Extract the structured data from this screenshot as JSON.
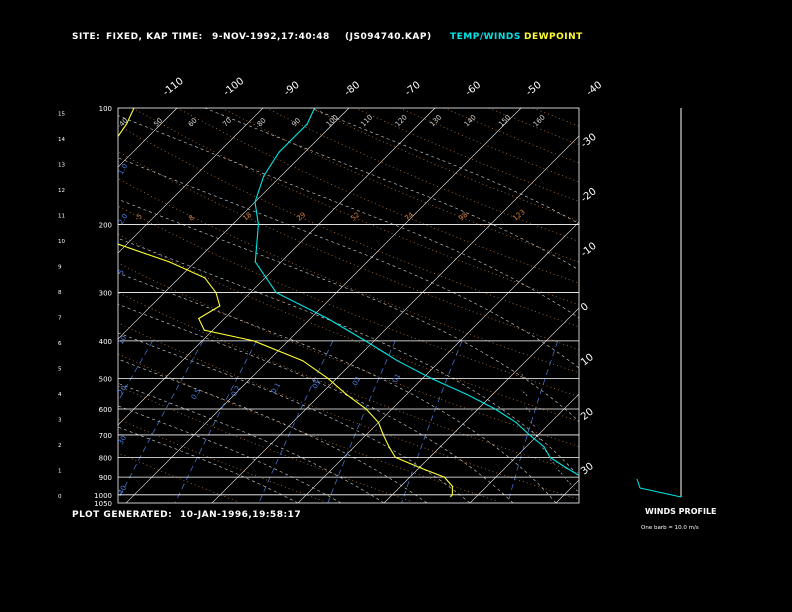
{
  "header": {
    "site_label": "SITE:",
    "site_value": "FIXED, KAP",
    "time_label": "TIME:",
    "time_value": "9-NOV-1992,17:40:48",
    "file_id": "(JS094740.KAP)",
    "temp_winds_legend": "TEMP/WINDS",
    "dewpoint_legend": "DEWPOINT"
  },
  "footer": {
    "generated_label": "PLOT GENERATED:",
    "generated_value": "10-JAN-1996,19:58:17"
  },
  "winds": {
    "title": "WINDS PROFILE",
    "note": "One barb = 10.0 m/s"
  },
  "colors": {
    "temperature": "#00e5e5",
    "dewpoint": "#ffff33",
    "isobar": "#ffffff",
    "isotherm": "#ffffff",
    "dry_adiabat": "#d08040",
    "moist_adiabat": "#d8d8d8",
    "mixing_ratio": "#4a7ee0"
  },
  "chart_data": {
    "type": "line",
    "diagram": "skew-T",
    "pressure_axis": {
      "label_positions_hPa": [
        100,
        200,
        300,
        400,
        500,
        600,
        700,
        800,
        900,
        1000,
        1050
      ],
      "labels": [
        "100",
        "200",
        "300",
        "400",
        "500",
        "600",
        "700",
        "800",
        "900",
        "1000",
        "1050"
      ]
    },
    "height_axis_km": [
      "0",
      "1",
      "2",
      "3",
      "4",
      "5",
      "6",
      "7",
      "8",
      "9",
      "10",
      "11",
      "12",
      "13",
      "14",
      "15"
    ],
    "isotherm_labels_top": [
      "-110",
      "-100",
      "-90",
      "-80",
      "-70",
      "-60",
      "-50",
      "-40"
    ],
    "isotherm_labels_right": [
      "-30",
      "-20",
      "-10",
      "0",
      "10",
      "20",
      "30"
    ],
    "dry_adiabat_labels": [
      "-5",
      "8",
      "18",
      "29",
      "52",
      "74",
      "98",
      "123"
    ],
    "moist_adiabat_labels_top": [
      "40",
      "50",
      "60",
      "70",
      "80",
      "90",
      "100",
      "110",
      "120",
      "130",
      "140",
      "150",
      "160"
    ],
    "mixing_ratio_labels": [
      "40",
      "30",
      "20",
      "10",
      "5",
      "2.0",
      "1.0",
      "0.5",
      "0.2",
      "0.1",
      ".05",
      ".02",
      ".01"
    ],
    "series": [
      {
        "name": "TEMP/WINDS",
        "points": [
          {
            "p": 100,
            "t": -64
          },
          {
            "p": 110,
            "t": -63
          },
          {
            "p": 130,
            "t": -63
          },
          {
            "p": 150,
            "t": -62
          },
          {
            "p": 175,
            "t": -60
          },
          {
            "p": 200,
            "t": -57
          },
          {
            "p": 250,
            "t": -53
          },
          {
            "p": 300,
            "t": -47
          },
          {
            "p": 350,
            "t": -38
          },
          {
            "p": 400,
            "t": -31
          },
          {
            "p": 450,
            "t": -25
          },
          {
            "p": 500,
            "t": -19
          },
          {
            "p": 550,
            "t": -13
          },
          {
            "p": 600,
            "t": -8
          },
          {
            "p": 650,
            "t": -4
          },
          {
            "p": 700,
            "t": -1
          },
          {
            "p": 750,
            "t": 2
          },
          {
            "p": 800,
            "t": 4
          },
          {
            "p": 850,
            "t": 7
          },
          {
            "p": 900,
            "t": 10
          },
          {
            "p": 950,
            "t": 13
          },
          {
            "p": 1000,
            "t": 15
          },
          {
            "p": 1010,
            "t": 15
          }
        ]
      },
      {
        "name": "DEWPOINT",
        "points": [
          {
            "p": 100,
            "t": -85
          },
          {
            "p": 110,
            "t": -84
          },
          {
            "p": 130,
            "t": -83
          },
          {
            "p": 150,
            "t": -82
          },
          {
            "p": 175,
            "t": -80
          },
          {
            "p": 200,
            "t": -76
          },
          {
            "p": 225,
            "t": -71
          },
          {
            "p": 250,
            "t": -63
          },
          {
            "p": 275,
            "t": -57
          },
          {
            "p": 300,
            "t": -54
          },
          {
            "p": 325,
            "t": -52
          },
          {
            "p": 350,
            "t": -53
          },
          {
            "p": 375,
            "t": -51
          },
          {
            "p": 400,
            "t": -44
          },
          {
            "p": 450,
            "t": -36
          },
          {
            "p": 500,
            "t": -31
          },
          {
            "p": 550,
            "t": -27
          },
          {
            "p": 600,
            "t": -23
          },
          {
            "p": 650,
            "t": -20
          },
          {
            "p": 700,
            "t": -18
          },
          {
            "p": 750,
            "t": -16
          },
          {
            "p": 800,
            "t": -14
          },
          {
            "p": 850,
            "t": -10
          },
          {
            "p": 900,
            "t": -6
          },
          {
            "p": 950,
            "t": -4
          },
          {
            "p": 1000,
            "t": -3
          },
          {
            "p": 1010,
            "t": -3
          }
        ]
      }
    ]
  }
}
